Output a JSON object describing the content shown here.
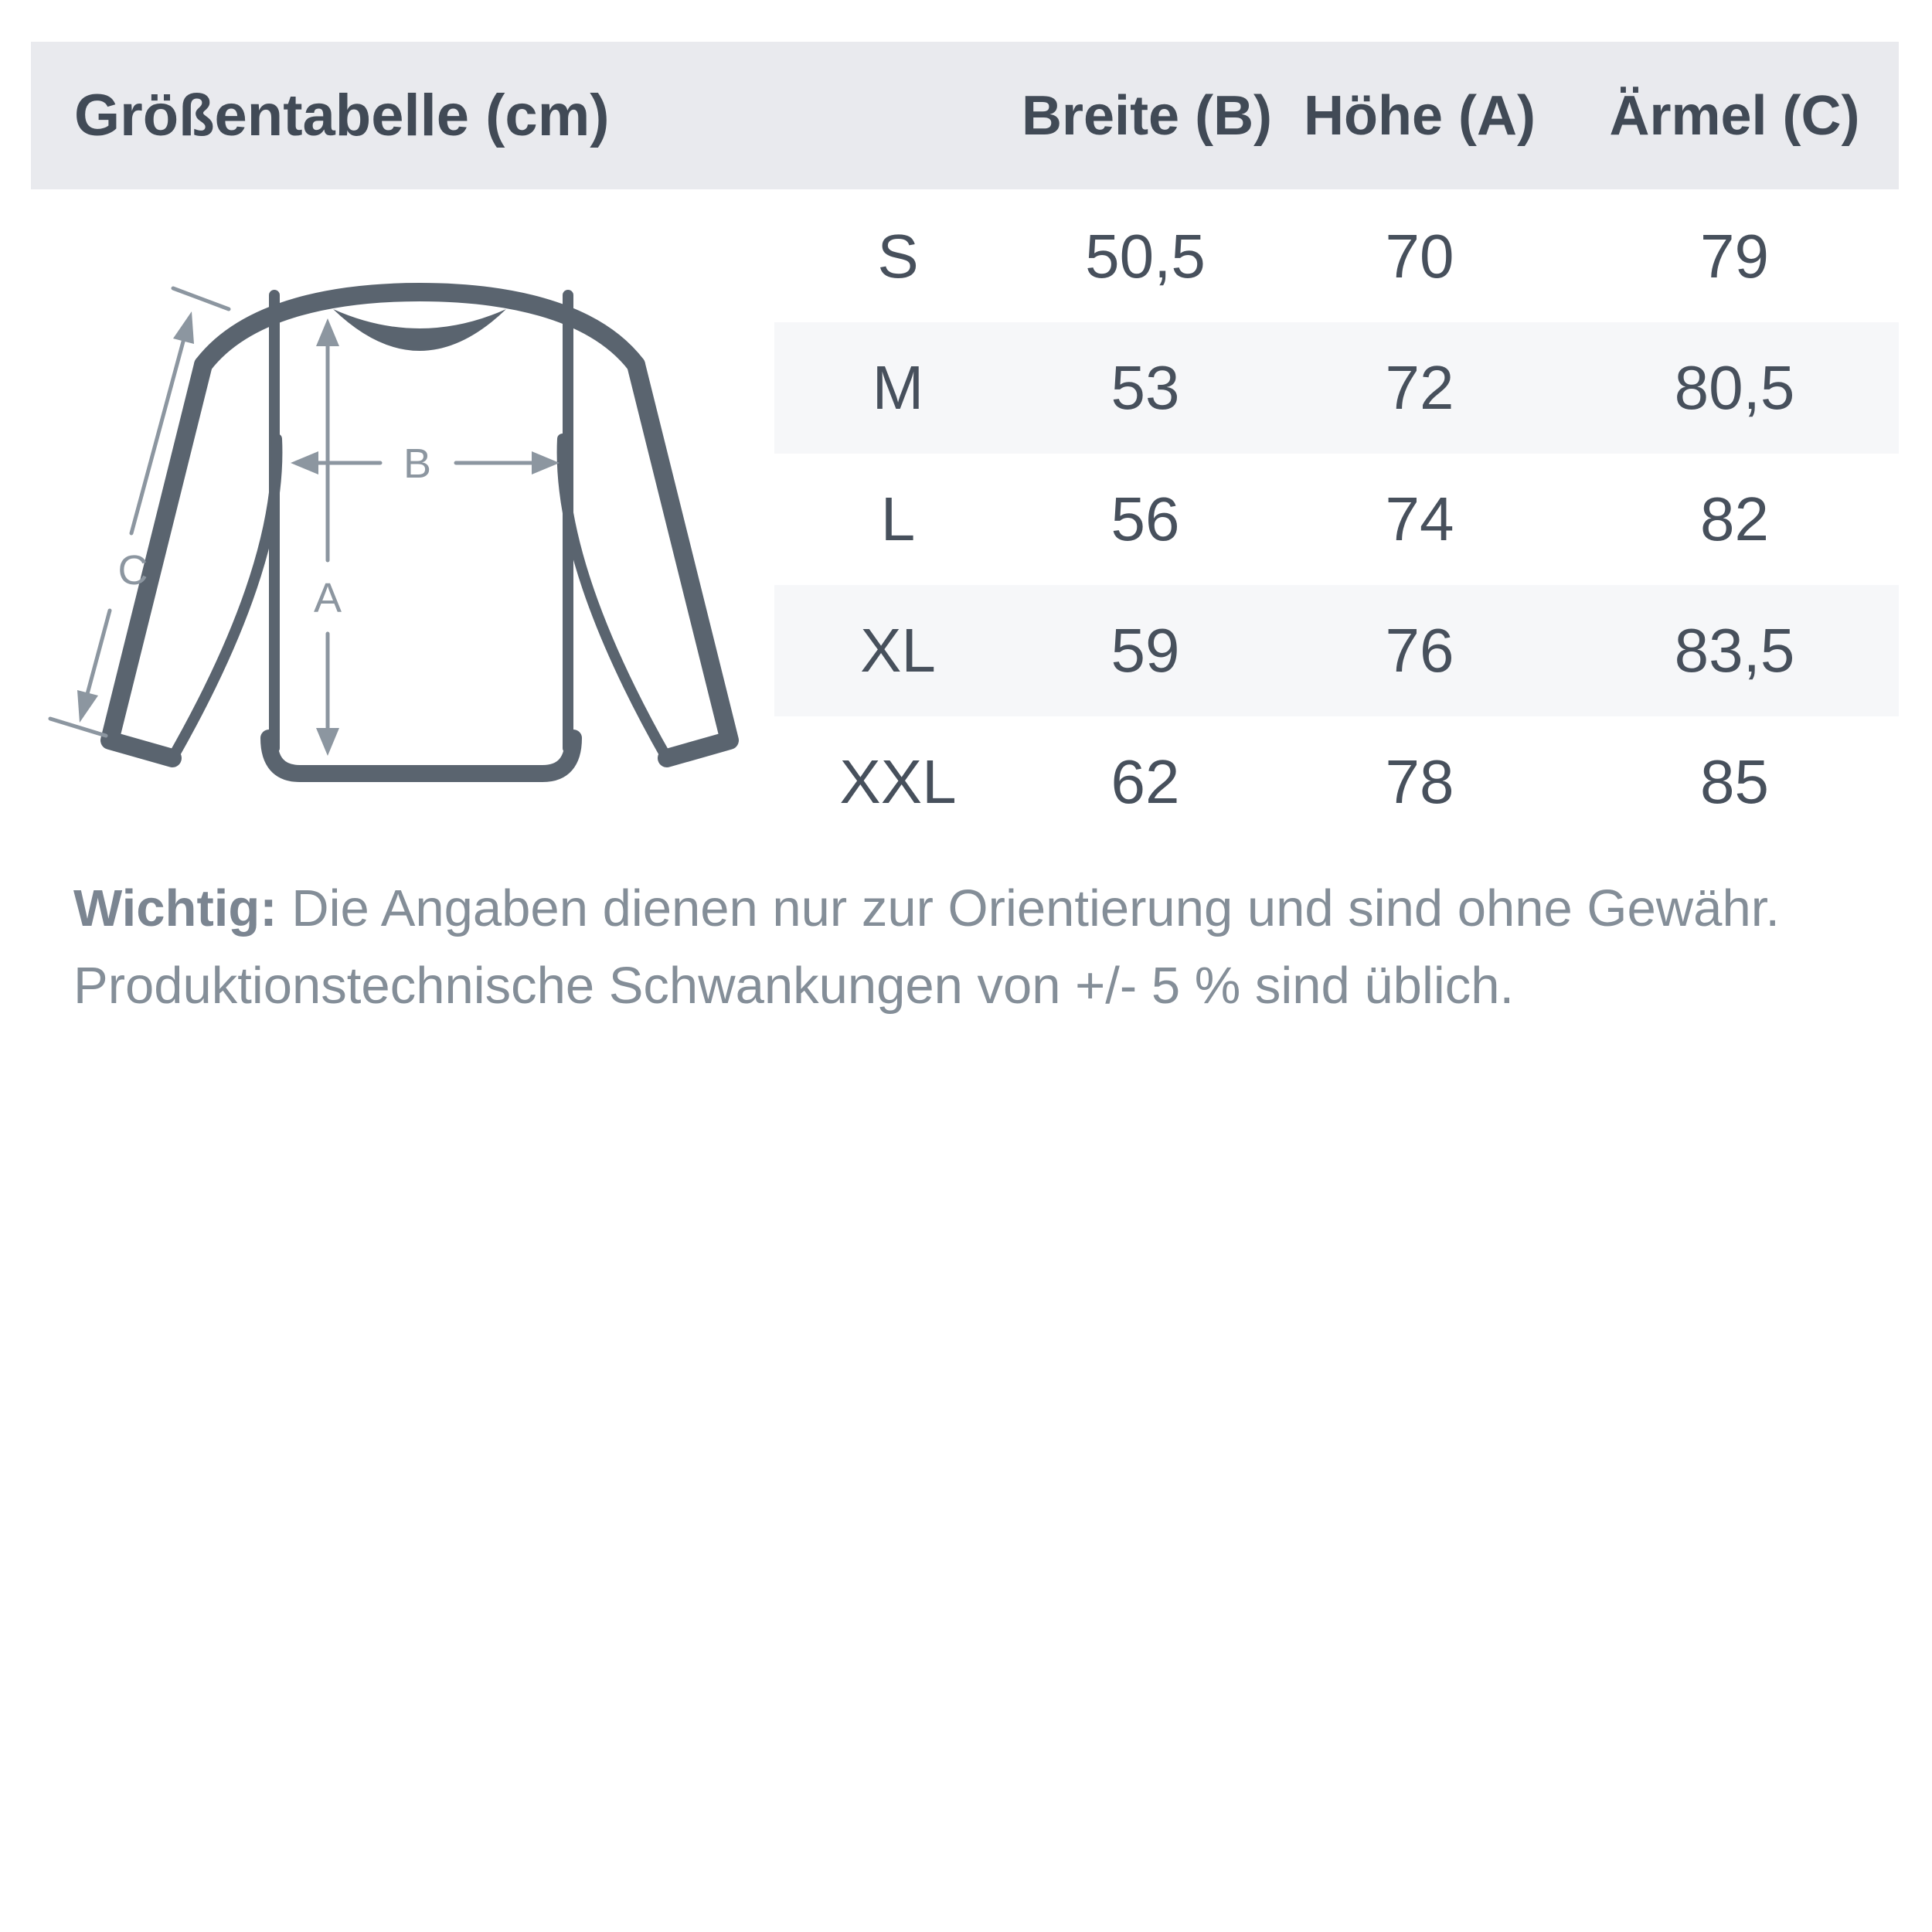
{
  "header": {
    "title": "Größentabelle (cm)",
    "columns": [
      "Breite (B)",
      "Höhe (A)",
      "Ärmel (C)"
    ]
  },
  "table": {
    "rows": [
      {
        "size": "S",
        "breite": "50,5",
        "hoehe": "70",
        "aermel": "79"
      },
      {
        "size": "M",
        "breite": "53",
        "hoehe": "72",
        "aermel": "80,5"
      },
      {
        "size": "L",
        "breite": "56",
        "hoehe": "74",
        "aermel": "82"
      },
      {
        "size": "XL",
        "breite": "59",
        "hoehe": "76",
        "aermel": "83,5"
      },
      {
        "size": "XXL",
        "breite": "62",
        "hoehe": "78",
        "aermel": "85"
      }
    ]
  },
  "diagram": {
    "labels": {
      "a": "A",
      "b": "B",
      "c": "C"
    }
  },
  "footer": {
    "bold": "Wichtig:",
    "line1_rest": " Die Angaben dienen nur zur Orientierung und sind ohne Gewähr.",
    "line2": "Produktionstechnische Schwankungen von +/- 5 % sind üblich."
  },
  "colors": {
    "header_bg": "#e9eaee",
    "stripe_bg": "#f6f7f9",
    "text_dark": "#414a56",
    "cell_text": "#47505c",
    "outline": "#5a646f",
    "arrow": "#8c96a0",
    "footer_text": "#848e98"
  }
}
